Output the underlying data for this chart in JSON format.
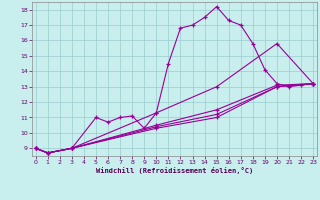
{
  "xlabel": "Windchill (Refroidissement éolien,°C)",
  "xlim": [
    -0.3,
    23.3
  ],
  "ylim": [
    8.5,
    18.5
  ],
  "xticks": [
    0,
    1,
    2,
    3,
    4,
    5,
    6,
    7,
    8,
    9,
    10,
    11,
    12,
    13,
    14,
    15,
    16,
    17,
    18,
    19,
    20,
    21,
    22,
    23
  ],
  "yticks": [
    9,
    10,
    11,
    12,
    13,
    14,
    15,
    16,
    17,
    18
  ],
  "bg_color": "#c8eeee",
  "line_color": "#990099",
  "grid_color": "#99cccc",
  "lines": [
    {
      "x": [
        0,
        1,
        3,
        5,
        6,
        7,
        8,
        9,
        10,
        11,
        12,
        13,
        14,
        15,
        16,
        17,
        18,
        19,
        20,
        21,
        22,
        23
      ],
      "y": [
        9.0,
        8.7,
        9.0,
        11.0,
        10.7,
        11.0,
        11.1,
        10.3,
        11.3,
        14.5,
        16.8,
        17.0,
        17.5,
        18.2,
        17.3,
        17.0,
        15.8,
        14.1,
        13.2,
        13.0,
        13.1,
        13.2
      ]
    },
    {
      "x": [
        0,
        1,
        3,
        10,
        15,
        20,
        23
      ],
      "y": [
        9.0,
        8.7,
        9.0,
        11.3,
        13.0,
        15.8,
        13.2
      ]
    },
    {
      "x": [
        0,
        1,
        3,
        10,
        15,
        20,
        23
      ],
      "y": [
        9.0,
        8.7,
        9.0,
        10.5,
        11.5,
        13.1,
        13.2
      ]
    },
    {
      "x": [
        0,
        1,
        3,
        10,
        15,
        20,
        23
      ],
      "y": [
        9.0,
        8.7,
        9.0,
        10.4,
        11.2,
        13.0,
        13.2
      ]
    },
    {
      "x": [
        0,
        1,
        3,
        10,
        15,
        20,
        23
      ],
      "y": [
        9.0,
        8.7,
        9.0,
        10.3,
        11.0,
        13.0,
        13.2
      ]
    }
  ]
}
